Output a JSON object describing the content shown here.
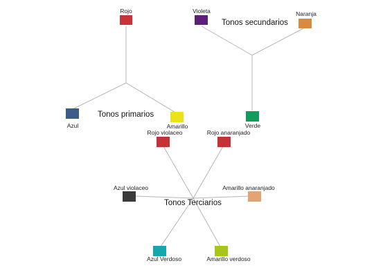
{
  "groups": {
    "primarios": {
      "title": "Tonos primarios",
      "colors": [
        {
          "name": "Rojo",
          "hex": "#c8333a"
        },
        {
          "name": "Azul",
          "hex": "#3d5b8a"
        },
        {
          "name": "Amarillo",
          "hex": "#ebe21d"
        }
      ]
    },
    "secundarios": {
      "title": "Tonos secundarios",
      "colors": [
        {
          "name": "Violeta",
          "hex": "#5e1f78"
        },
        {
          "name": "Naranja",
          "hex": "#d98a3c"
        },
        {
          "name": "Verde",
          "hex": "#139b5b"
        }
      ]
    },
    "terciarios": {
      "title": "Tonos Terciarios",
      "colors": [
        {
          "name": "Rojo violaceo",
          "hex": "#c23236"
        },
        {
          "name": "Rojo anaranjado",
          "hex": "#c23236"
        },
        {
          "name": "Azul violaceo",
          "hex": "#3b3b3d"
        },
        {
          "name": "Amarillo anaranjado",
          "hex": "#e2a473"
        },
        {
          "name": "Azul Verdoso",
          "hex": "#14a8ac"
        },
        {
          "name": "Amarillo verdoso",
          "hex": "#a7c51d"
        }
      ]
    }
  }
}
